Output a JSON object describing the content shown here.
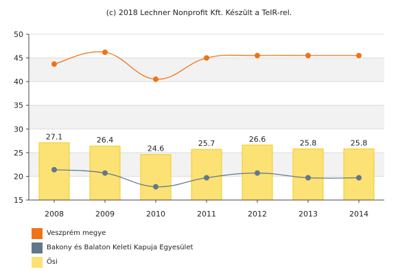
{
  "caption": "(c) 2018 Lechner Nonprofit Kft. Készült a TeIR-rel.",
  "chart_data": {
    "type": "bar",
    "categories": [
      "2008",
      "2009",
      "2010",
      "2011",
      "2012",
      "2013",
      "2014"
    ],
    "ylim": [
      15,
      50
    ],
    "yticks": [
      "15",
      "20",
      "25",
      "30",
      "35",
      "40",
      "45",
      "50"
    ],
    "grid": true,
    "legend_position": "bottom-left",
    "series": [
      {
        "name": "Veszprém megye",
        "kind": "line",
        "color": "#f07219",
        "values": [
          43.7,
          46.2,
          40.5,
          45.0,
          45.5,
          45.5,
          45.5
        ]
      },
      {
        "name": "Bakony és Balaton Keleti Kapuja Egyesület",
        "kind": "line",
        "color": "#60788c",
        "values": [
          21.4,
          20.7,
          17.8,
          19.7,
          20.7,
          19.7,
          19.7
        ]
      },
      {
        "name": "Ősi",
        "kind": "bar",
        "color": "#fce174",
        "border": "#f2cc1f",
        "values": [
          27.1,
          26.4,
          24.6,
          25.7,
          26.6,
          25.8,
          25.8
        ],
        "labels": [
          "27.1",
          "26.4",
          "24.6",
          "25.7",
          "26.6",
          "25.8",
          "25.8"
        ]
      }
    ]
  },
  "legend": [
    {
      "label": "Veszprém megye",
      "color": "#f07219"
    },
    {
      "label": "Bakony és Balaton Keleti Kapuja Egyesület",
      "color": "#60788c"
    },
    {
      "label": "Ősi",
      "color": "#fce174"
    }
  ]
}
